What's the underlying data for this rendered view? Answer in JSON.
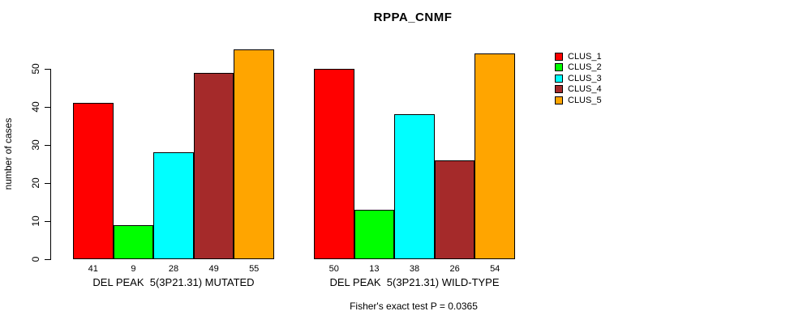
{
  "title": "RPPA_CNMF",
  "footer": "Fisher's exact test P = 0.0365",
  "chart_data": {
    "type": "bar",
    "title": "RPPA_CNMF",
    "xlabel": "",
    "ylabel": "number of cases",
    "ylim": [
      0,
      55
    ],
    "yticks": [
      0,
      10,
      20,
      30,
      40,
      50
    ],
    "grid": false,
    "legend_position": "right",
    "series": [
      {
        "name": "CLUS_1",
        "color": "#FF0000",
        "values": [
          41,
          50
        ]
      },
      {
        "name": "CLUS_2",
        "color": "#00FF00",
        "values": [
          9,
          13
        ]
      },
      {
        "name": "CLUS_3",
        "color": "#00FFFF",
        "values": [
          28,
          38
        ]
      },
      {
        "name": "CLUS_4",
        "color": "#A52A2A",
        "values": [
          49,
          26
        ]
      },
      {
        "name": "CLUS_5",
        "color": "#FFA500",
        "values": [
          55,
          54
        ]
      }
    ],
    "groups": [
      {
        "label": "DEL PEAK  5(3P21.31) MUTATED",
        "values": [
          41,
          9,
          28,
          49,
          55
        ]
      },
      {
        "label": "DEL PEAK  5(3P21.31) WILD-TYPE",
        "values": [
          50,
          13,
          38,
          26,
          54
        ]
      }
    ],
    "bar_value_labels_shown": true,
    "annotation": "Fisher's exact test P = 0.0365",
    "axis_color": "#000000",
    "bar_border_color": "#000000"
  }
}
